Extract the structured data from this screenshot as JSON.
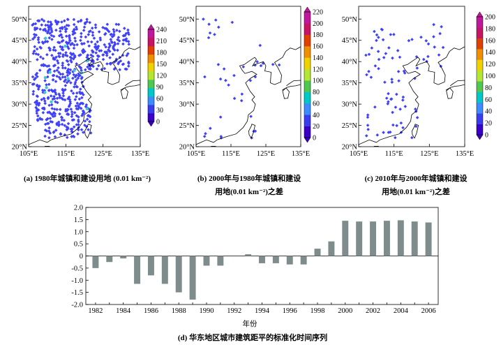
{
  "maps": [
    {
      "caption_lines": [
        "(a) 1980年城镇和建设用地 (0.01 km⁻²)"
      ],
      "x_ticks": [
        "105°E",
        "115°E",
        "125°E",
        "135°E"
      ],
      "y_ticks": [
        "20°N",
        "25°N",
        "30°N",
        "35°N",
        "40°N",
        "45°N",
        "50°N"
      ],
      "xlim": [
        105,
        135
      ],
      "ylim": [
        20,
        53
      ],
      "colorbar_ticks": [
        "0",
        "30",
        "60",
        "90",
        "120",
        "150",
        "180",
        "210",
        "240"
      ],
      "colorbar_colors": [
        "#3a00c8",
        "#3a3cf0",
        "#3c8cff",
        "#00c8c8",
        "#50c850",
        "#b4e632",
        "#f0d200",
        "#f09000",
        "#e04000",
        "#c81464",
        "#c0189c"
      ],
      "point_color": "#4040ff",
      "density": "dense"
    },
    {
      "caption_lines": [
        "(b) 2000年与1980年城镇和建设",
        "用地(0.01 km⁻²)之差"
      ],
      "x_ticks": [
        "105°E",
        "115°E",
        "125°E",
        "135°E"
      ],
      "y_ticks": [
        "20°N",
        "25°N",
        "30°N",
        "35°N",
        "40°N",
        "45°N",
        "50°N"
      ],
      "xlim": [
        105,
        135
      ],
      "ylim": [
        20,
        53
      ],
      "colorbar_ticks": [
        "0",
        "20",
        "40",
        "60",
        "80",
        "100",
        "120",
        "140",
        "160",
        "180",
        "200",
        "220"
      ],
      "colorbar_colors": [
        "#3a00c8",
        "#3a3cf0",
        "#3c8cff",
        "#00c8c8",
        "#50c850",
        "#b4e632",
        "#f0d200",
        "#f09000",
        "#e04000",
        "#c81464",
        "#c0189c"
      ],
      "point_color": "#4040ff",
      "density": "sparse"
    },
    {
      "caption_lines": [
        "(c) 2010年与2000年城镇和建设",
        "用地(0.01 km⁻²)之差"
      ],
      "x_ticks": [
        "105°E",
        "115°E",
        "125°E",
        "135°E"
      ],
      "y_ticks": [
        "20°N",
        "25°N",
        "30°N",
        "35°N",
        "40°N",
        "45°N",
        "50°N"
      ],
      "xlim": [
        105,
        135
      ],
      "ylim": [
        20,
        53
      ],
      "colorbar_ticks": [
        "0",
        "20",
        "40",
        "60",
        "80",
        "100",
        "120",
        "140",
        "160",
        "180",
        "200"
      ],
      "colorbar_colors": [
        "#3a00c8",
        "#3a3cf0",
        "#3c8cff",
        "#00c8c8",
        "#50c850",
        "#b4e632",
        "#f0d200",
        "#f09000",
        "#e04000",
        "#c81464",
        "#c0189c"
      ],
      "point_color": "#4040ff",
      "density": "medium"
    }
  ],
  "chart_data": {
    "type": "bar",
    "title": "(d) 华东地区城市建筑距平的标准化时间序列",
    "xlabel": "年份",
    "ylabel": "",
    "x": [
      1982,
      1983,
      1984,
      1985,
      1986,
      1987,
      1988,
      1989,
      1990,
      1991,
      1992,
      1993,
      1994,
      1995,
      1996,
      1997,
      1998,
      1999,
      2000,
      2001,
      2002,
      2003,
      2004,
      2005,
      2006
    ],
    "values": [
      -0.5,
      -0.25,
      -0.1,
      -1.15,
      -0.8,
      -1.15,
      -1.5,
      -1.8,
      -0.4,
      -0.4,
      0,
      0.07,
      -0.3,
      -0.3,
      -0.35,
      -0.35,
      0.3,
      0.6,
      1.45,
      1.42,
      1.42,
      1.45,
      1.47,
      1.42,
      1.38
    ],
    "x_tick_labels": [
      "1982",
      "1984",
      "1986",
      "1988",
      "1990",
      "1992",
      "1994",
      "1996",
      "1998",
      "2000",
      "2002",
      "2004",
      "2006"
    ],
    "y_tick_labels": [
      "-2.0",
      "-1.5",
      "-1.0",
      "-0.5",
      "0",
      "0.5",
      "1.0",
      "1.5",
      "2.0"
    ],
    "ylim": [
      -2.0,
      2.0
    ],
    "bar_color": "#7f8c8c",
    "zero_line": true
  }
}
